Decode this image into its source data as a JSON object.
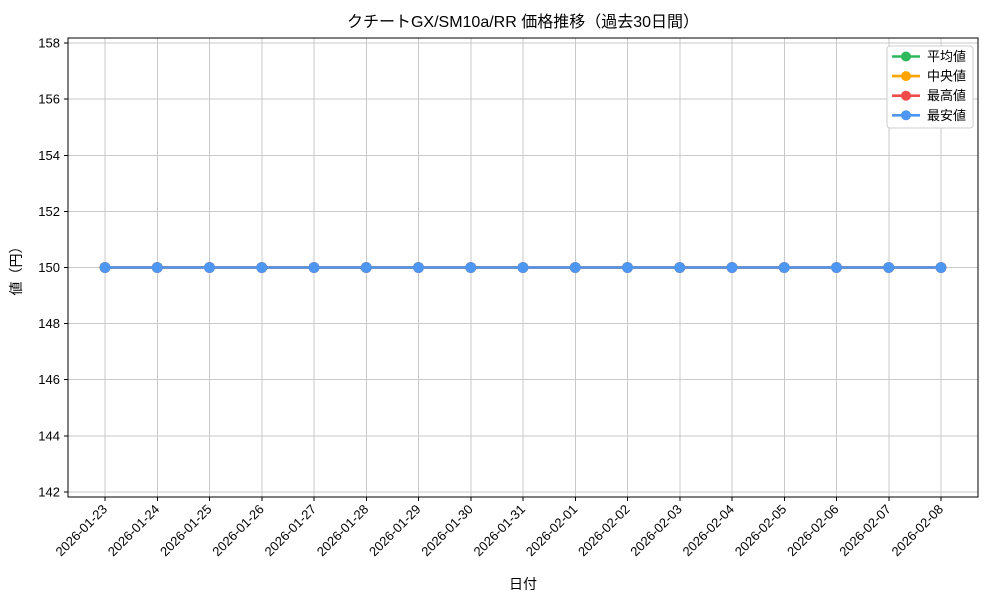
{
  "chart_data": {
    "type": "line",
    "title": "クチートGX/SM10a/RR 価格推移（過去30日間）",
    "xlabel": "日付",
    "ylabel": "値（円）",
    "x": [
      "2026-01-23",
      "2026-01-24",
      "2026-01-25",
      "2026-01-26",
      "2026-01-27",
      "2026-01-28",
      "2026-01-29",
      "2026-01-30",
      "2026-01-31",
      "2026-02-01",
      "2026-02-02",
      "2026-02-03",
      "2026-02-04",
      "2026-02-05",
      "2026-02-06",
      "2026-02-07",
      "2026-02-08"
    ],
    "x_tick_rotation": 45,
    "series": [
      {
        "name": "平均値",
        "color": "#2eb85c",
        "marker": "o",
        "values": [
          150,
          150,
          150,
          150,
          150,
          150,
          150,
          150,
          150,
          150,
          150,
          150,
          150,
          150,
          150,
          150,
          150
        ]
      },
      {
        "name": "中央値",
        "color": "#ffa500",
        "marker": "o",
        "values": [
          150,
          150,
          150,
          150,
          150,
          150,
          150,
          150,
          150,
          150,
          150,
          150,
          150,
          150,
          150,
          150,
          150
        ]
      },
      {
        "name": "最高値",
        "color": "#ef4b4b",
        "marker": "o",
        "values": [
          150,
          150,
          150,
          150,
          150,
          150,
          150,
          150,
          150,
          150,
          150,
          150,
          150,
          150,
          150,
          150,
          150
        ]
      },
      {
        "name": "最安値",
        "color": "#4d96f2",
        "marker": "o",
        "values": [
          150,
          150,
          150,
          150,
          150,
          150,
          150,
          150,
          150,
          150,
          150,
          150,
          150,
          150,
          150,
          150,
          150
        ]
      }
    ],
    "ylim": [
      141.82,
      158.18
    ],
    "yticks": [
      142,
      144,
      146,
      148,
      150,
      152,
      154,
      156,
      158
    ],
    "grid": true,
    "grid_color": "#c9c9c9",
    "axis_color": "#000000",
    "background_color": "#ffffff",
    "legend_position": "upper right"
  }
}
